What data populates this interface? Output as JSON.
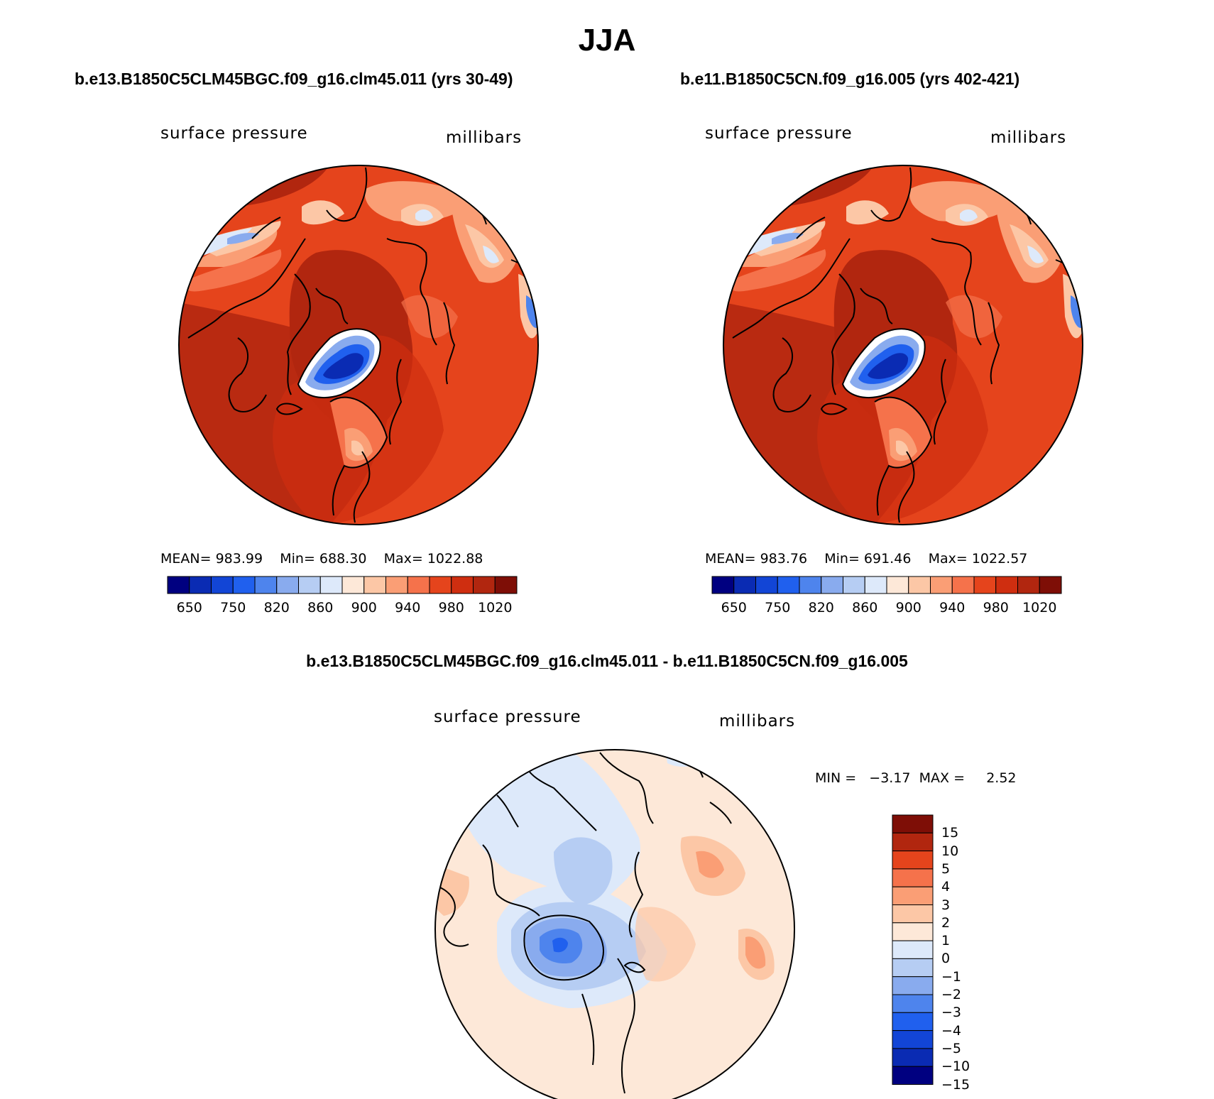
{
  "title": "JJA",
  "panels": [
    {
      "case_title": "b.e13.B1850C5CLM45BGC.f09_g16.clm45.011 (yrs 30-49)",
      "variable": "surface pressure",
      "units": "millibars",
      "stats": {
        "mean_label": "MEAN=",
        "mean": "983.99",
        "min_label": "Min=",
        "min": "688.30",
        "max_label": "Max=",
        "max": "1022.88"
      }
    },
    {
      "case_title": "b.e11.B1850C5CN.f09_g16.005 (yrs 402-421)",
      "variable": "surface pressure",
      "units": "millibars",
      "stats": {
        "mean_label": "MEAN=",
        "mean": "983.76",
        "min_label": "Min=",
        "min": "691.46",
        "max_label": "Max=",
        "max": "1022.57"
      }
    }
  ],
  "colorbar_abs": {
    "colors": [
      "#000080",
      "#0a2bb3",
      "#1245d6",
      "#2060ee",
      "#4e84ed",
      "#89abee",
      "#b6cdf3",
      "#dde9fa",
      "#fde8d8",
      "#fcc7a6",
      "#fa9e75",
      "#f5724b",
      "#e5441c",
      "#cf2e10",
      "#b1260f",
      "#7e0e06"
    ],
    "tick_labels": [
      "650",
      "750",
      "820",
      "860",
      "900",
      "940",
      "980",
      "1020"
    ]
  },
  "diff_panel": {
    "title": "b.e13.B1850C5CLM45BGC.f09_g16.clm45.011 - b.e11.B1850C5CN.f09_g16.005",
    "variable": "surface pressure",
    "units": "millibars",
    "min_label": "MIN =",
    "min": "−3.17",
    "max_label": "MAX =",
    "max": "2.52"
  },
  "colorbar_diff": {
    "colors_top_to_bottom": [
      "#7e0e06",
      "#b1260f",
      "#e5441c",
      "#f5724b",
      "#fa9e75",
      "#fcc7a6",
      "#fde8d8",
      "#dde9fa",
      "#b6cdf3",
      "#89abee",
      "#4e84ed",
      "#2060ee",
      "#1245d6",
      "#0a2bb3",
      "#000080"
    ],
    "tick_labels": [
      "15",
      "10",
      "5",
      "4",
      "3",
      "2",
      "1",
      "0",
      "−1",
      "−2",
      "−3",
      "−4",
      "−5",
      "−10",
      "−15"
    ]
  }
}
